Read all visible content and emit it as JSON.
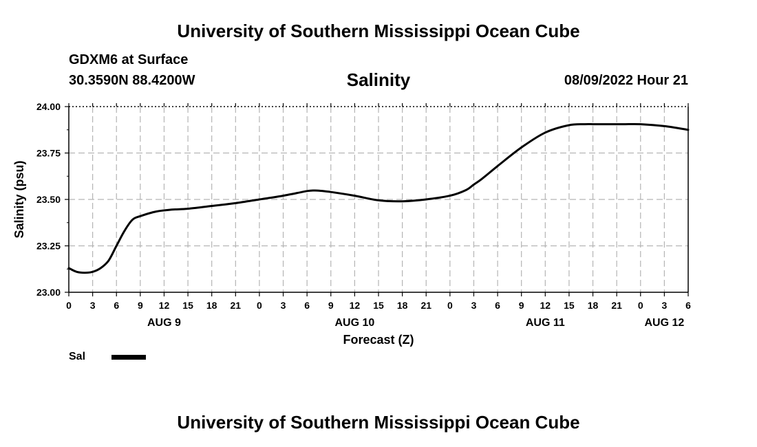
{
  "header": {
    "title": "University of Southern Mississippi Ocean Cube",
    "station": "GDXM6 at Surface",
    "coordinates": "30.3590N  88.4200W",
    "datetime": "08/09/2022 Hour 21"
  },
  "footer": {
    "title": "University of Southern Mississippi Ocean Cube"
  },
  "legend": {
    "label": "Sal"
  },
  "chart_data": {
    "type": "line",
    "title": "Salinity",
    "xlabel": "Forecast (Z)",
    "ylabel": "Salinity (psu)",
    "ylim": [
      23.0,
      24.0
    ],
    "xlim": [
      0,
      78
    ],
    "grid": true,
    "legend_position": "bottom-left",
    "y_ticks": [
      23.0,
      23.25,
      23.5,
      23.75,
      24.0
    ],
    "y_tick_labels": [
      "23.00",
      "23.25",
      "23.50",
      "23.75",
      "24.00"
    ],
    "x_ticks": [
      0,
      3,
      6,
      9,
      12,
      15,
      18,
      21,
      24,
      27,
      30,
      33,
      36,
      39,
      42,
      45,
      48,
      51,
      54,
      57,
      60,
      63,
      66,
      69,
      72,
      75,
      78
    ],
    "x_tick_labels": [
      "0",
      "3",
      "6",
      "9",
      "12",
      "15",
      "18",
      "21",
      "0",
      "3",
      "6",
      "9",
      "12",
      "15",
      "18",
      "21",
      "0",
      "3",
      "6",
      "9",
      "12",
      "15",
      "18",
      "21",
      "0",
      "3",
      "6"
    ],
    "day_labels": [
      {
        "hour": 12,
        "label": "AUG 9"
      },
      {
        "hour": 36,
        "label": "AUG 10"
      },
      {
        "hour": 60,
        "label": "AUG 11"
      },
      {
        "hour": 75,
        "label": "AUG 12"
      }
    ],
    "series": [
      {
        "name": "Sal",
        "x": [
          0,
          1,
          2,
          3,
          4,
          5,
          6,
          7,
          8,
          9,
          11,
          13,
          15,
          18,
          21,
          24,
          27,
          30,
          31,
          32,
          33,
          36,
          39,
          42,
          45,
          48,
          50,
          51,
          52,
          54,
          57,
          60,
          63,
          65,
          66,
          67,
          68,
          69,
          70,
          72,
          75,
          78
        ],
        "y": [
          23.13,
          23.11,
          23.105,
          23.11,
          23.13,
          23.17,
          23.25,
          23.33,
          23.39,
          23.41,
          23.435,
          23.445,
          23.45,
          23.465,
          23.48,
          23.5,
          23.52,
          23.545,
          23.548,
          23.545,
          23.54,
          23.52,
          23.495,
          23.49,
          23.5,
          23.52,
          23.55,
          23.58,
          23.61,
          23.68,
          23.78,
          23.86,
          23.9,
          23.905,
          23.905,
          23.905,
          23.905,
          23.905,
          23.905,
          23.905,
          23.895,
          23.875
        ]
      }
    ]
  }
}
